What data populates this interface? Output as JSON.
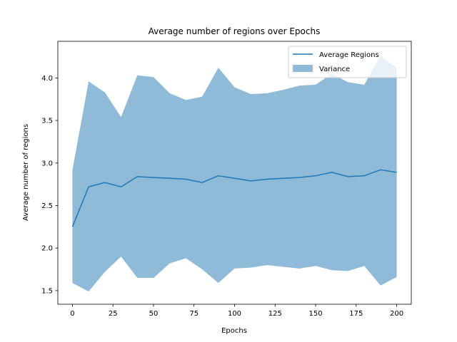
{
  "chart_data": {
    "type": "line",
    "title": "Average number of regions over Epochs",
    "xlabel": "Epochs",
    "ylabel": "Average number of regions",
    "xlim": [
      -9,
      209
    ],
    "ylim": [
      1.34,
      4.43
    ],
    "xticks": [
      0,
      25,
      50,
      75,
      100,
      125,
      150,
      175,
      200
    ],
    "yticks": [
      1.5,
      2.0,
      2.5,
      3.0,
      3.5,
      4.0
    ],
    "ytick_labels": [
      "1.5",
      "2.0",
      "2.5",
      "3.0",
      "3.5",
      "4.0"
    ],
    "x": [
      0,
      10,
      20,
      30,
      40,
      50,
      60,
      70,
      80,
      90,
      100,
      110,
      120,
      130,
      140,
      150,
      160,
      170,
      180,
      190,
      200
    ],
    "series": [
      {
        "name": "Average Regions",
        "color": "#1f77b4",
        "values": [
          2.25,
          2.72,
          2.77,
          2.72,
          2.84,
          2.83,
          2.82,
          2.81,
          2.77,
          2.85,
          2.82,
          2.79,
          2.81,
          2.82,
          2.83,
          2.85,
          2.89,
          2.84,
          2.85,
          2.92,
          2.89
        ]
      }
    ],
    "band": {
      "name": "Variance",
      "color": "#1f77b4",
      "opacity": 0.5,
      "upper": [
        2.92,
        3.96,
        3.83,
        3.54,
        4.03,
        4.01,
        3.82,
        3.74,
        3.78,
        4.12,
        3.89,
        3.81,
        3.82,
        3.86,
        3.91,
        3.92,
        4.05,
        3.95,
        3.92,
        4.26,
        4.12
      ],
      "lower": [
        1.59,
        1.49,
        1.72,
        1.9,
        1.65,
        1.65,
        1.82,
        1.88,
        1.75,
        1.59,
        1.76,
        1.77,
        1.8,
        1.78,
        1.76,
        1.79,
        1.74,
        1.73,
        1.79,
        1.56,
        1.66
      ]
    },
    "legend": {
      "placement": "upper-right",
      "entries": [
        "Average Regions",
        "Variance"
      ]
    },
    "grid": false
  }
}
